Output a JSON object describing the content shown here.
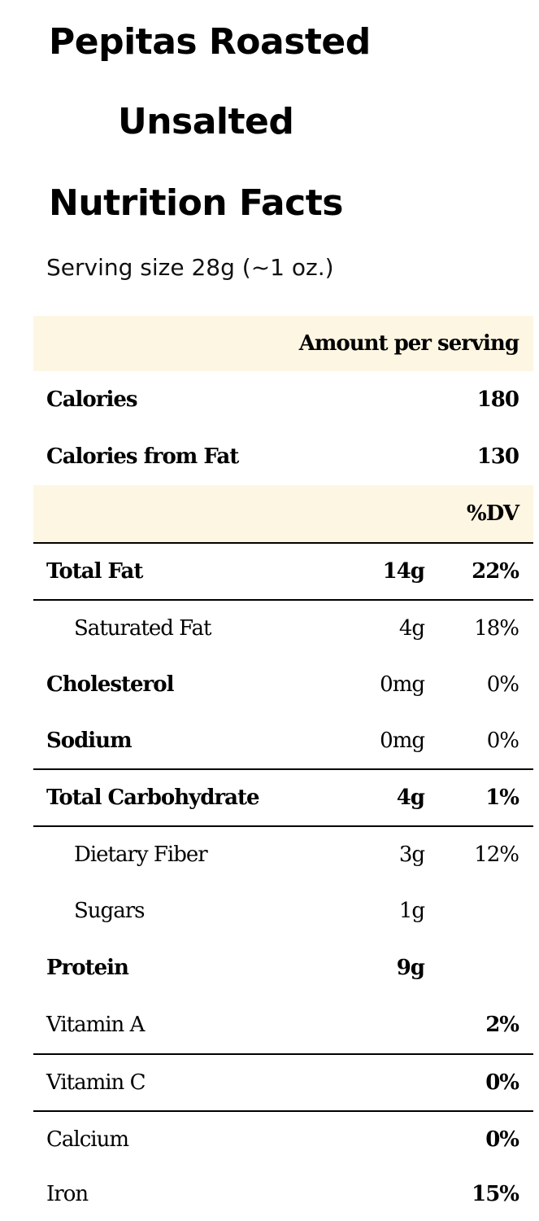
{
  "header": {
    "title_line1": "Pepitas Roasted",
    "title_line2": "Unsalted",
    "facts_heading": "Nutrition Facts",
    "serving_size": "Serving size 28g (~1 oz.)"
  },
  "table": {
    "amount_per_serving": "Amount per serving",
    "calories_label": "Calories",
    "calories_value": "180",
    "calories_fat_label": "Calories from Fat",
    "calories_fat_value": "130",
    "dv_header": "%DV",
    "nutrients": [
      {
        "name": "Total Fat",
        "amount": "14g",
        "dv": "22%"
      },
      {
        "name": "Saturated Fat",
        "amount": "4g",
        "dv": "18%"
      },
      {
        "name": "Cholesterol",
        "amount": "0mg",
        "dv": "0%"
      },
      {
        "name": "Sodium",
        "amount": "0mg",
        "dv": "0%"
      },
      {
        "name": "Total Carbohydrate",
        "amount": "4g",
        "dv": "1%"
      },
      {
        "name": "Dietary Fiber",
        "amount": "3g",
        "dv": "12%"
      },
      {
        "name": "Sugars",
        "amount": "1g",
        "dv": ""
      },
      {
        "name": "Protein",
        "amount": "9g",
        "dv": ""
      }
    ],
    "vitamins": [
      {
        "name": "Vitamin A",
        "dv": "2%"
      },
      {
        "name": "Vitamin C",
        "dv": "0%"
      },
      {
        "name": "Calcium",
        "dv": "0%"
      },
      {
        "name": "Iron",
        "dv": "15%"
      }
    ]
  }
}
